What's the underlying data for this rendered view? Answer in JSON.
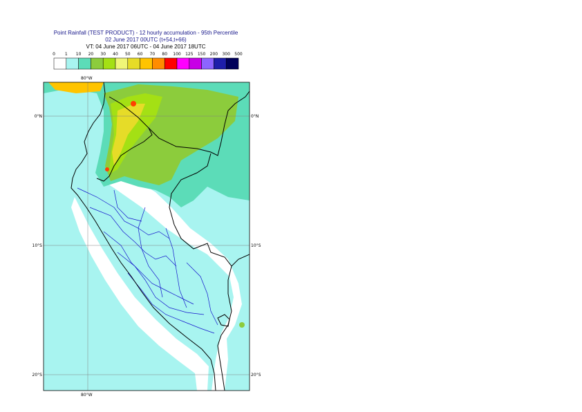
{
  "title": {
    "line1": "Point Rainfall (TEST PRODUCT) - 12 hourly accumulation - 95th Percentile",
    "line2": "02 June 2017 00UTC (t+54,t+66)",
    "line3": "VT: 04 June 2017 06UTC - 04 June 2017 18UTC"
  },
  "legend": {
    "ticks": [
      "0",
      "1",
      "10",
      "20",
      "30",
      "40",
      "50",
      "60",
      "70",
      "80",
      "100",
      "125",
      "150",
      "200",
      "300",
      "500"
    ],
    "colors": [
      "#ffffff",
      "#a8f4f0",
      "#5cdcb8",
      "#8ccc3c",
      "#a4e014",
      "#f0f678",
      "#e6dc28",
      "#ffc400",
      "#ff8c00",
      "#ff0000",
      "#ff00ff",
      "#c800e6",
      "#8c64ff",
      "#1e1eaa",
      "#00005a"
    ]
  },
  "map": {
    "lon_label_top": "80°W",
    "lon_label_bottom": "80°W",
    "lat_labels": [
      {
        "text": "0°N",
        "lat": 0
      },
      {
        "text": "10°S",
        "lat": -10
      },
      {
        "text": "20°S",
        "lat": -20
      }
    ],
    "colors": {
      "ocean": "#a8f4f0",
      "light": "#a8f4f0",
      "mid": "#5cdcb8",
      "green": "#8ccc3c",
      "yellowgreen": "#a4e014",
      "yellow": "#e6dc28",
      "orange": "#ffc400",
      "red": "#ff4000",
      "land_dry": "#ffffff",
      "coast": "#000000",
      "admin": "#1414cc"
    }
  }
}
